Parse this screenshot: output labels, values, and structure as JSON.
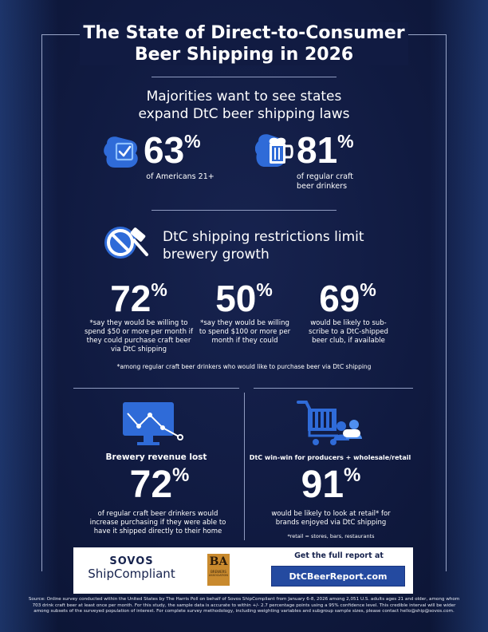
{
  "header": {
    "title_line1": "The State of Direct-to-Consumer",
    "title_line2": "Beer Shipping in 2026"
  },
  "section1": {
    "heading_line1": "Majorities want to see states",
    "heading_line2": "expand DtC beer shipping laws",
    "stat_a": {
      "value": "63",
      "unit": "%",
      "label": "of Americans 21+"
    },
    "stat_b": {
      "value": "81",
      "unit": "%",
      "label_line1": "of regular craft",
      "label_line2": "beer drinkers"
    }
  },
  "section2": {
    "heading_line1": "DtC shipping restrictions limit",
    "heading_line2": "brewery growth",
    "stats": [
      {
        "value": "72",
        "unit": "%",
        "lines": [
          "*say they would be willing to",
          "spend $50 or more per month if",
          "they could purchase craft beer",
          "via DtC shipping"
        ]
      },
      {
        "value": "50",
        "unit": "%",
        "lines": [
          "*say they would be willing",
          "to spend $100 or more per",
          "month if they could"
        ]
      },
      {
        "value": "69",
        "unit": "%",
        "lines": [
          "would be likely to sub-",
          "scribe to a DtC-shipped",
          "beer club, if available"
        ]
      }
    ],
    "footnote": "*among regular craft beer drinkers who would like to purchase beer via DtC shipping"
  },
  "section3": {
    "left": {
      "heading": "Brewery revenue lost",
      "value": "72",
      "unit": "%",
      "lines": [
        "of regular craft beer drinkers would",
        "increase purchasing if they were able to",
        "have it shipped directly to their home"
      ]
    },
    "right": {
      "heading": "DtC win-win for producers + wholesale/retail",
      "value": "91",
      "unit": "%",
      "lines": [
        "would be likely to look at retail* for",
        "brands enjoyed via DtC shipping"
      ],
      "footnote": "*retail = stores, bars, restaurants"
    }
  },
  "cta": {
    "sovos": "SOVOS",
    "shipcompliant": "ShipCompliant",
    "ba_letters": "BA",
    "ba_text_line1": "BREWERS",
    "ba_text_line2": "ASSOCIATION",
    "get_report": "Get the full report at",
    "url": "DtCBeerReport.com"
  },
  "source": {
    "line1": "Source: Online survey conducted within the United States by The Harris Poll on behalf of Sovos ShipCompliant from January 6-8, 2026 among 2,051 U.S. adults ages 21 and older, among whom",
    "line2": "703 drink craft beer at least once per month. For this study, the sample data is accurate to within +/- 2.7 percentage points using a 95% confidence level. This credible interval will be wider",
    "line3": "among subsets of the surveyed population of interest. For complete survey methodology, including weighting variables and subgroup sample sizes, please contact hello@ship@sovos.com."
  },
  "colors": {
    "background": "#111b42",
    "icon_blue": "#2f6bd8",
    "icon_light": "#4f8ff0",
    "url_button": "#244aa0"
  }
}
